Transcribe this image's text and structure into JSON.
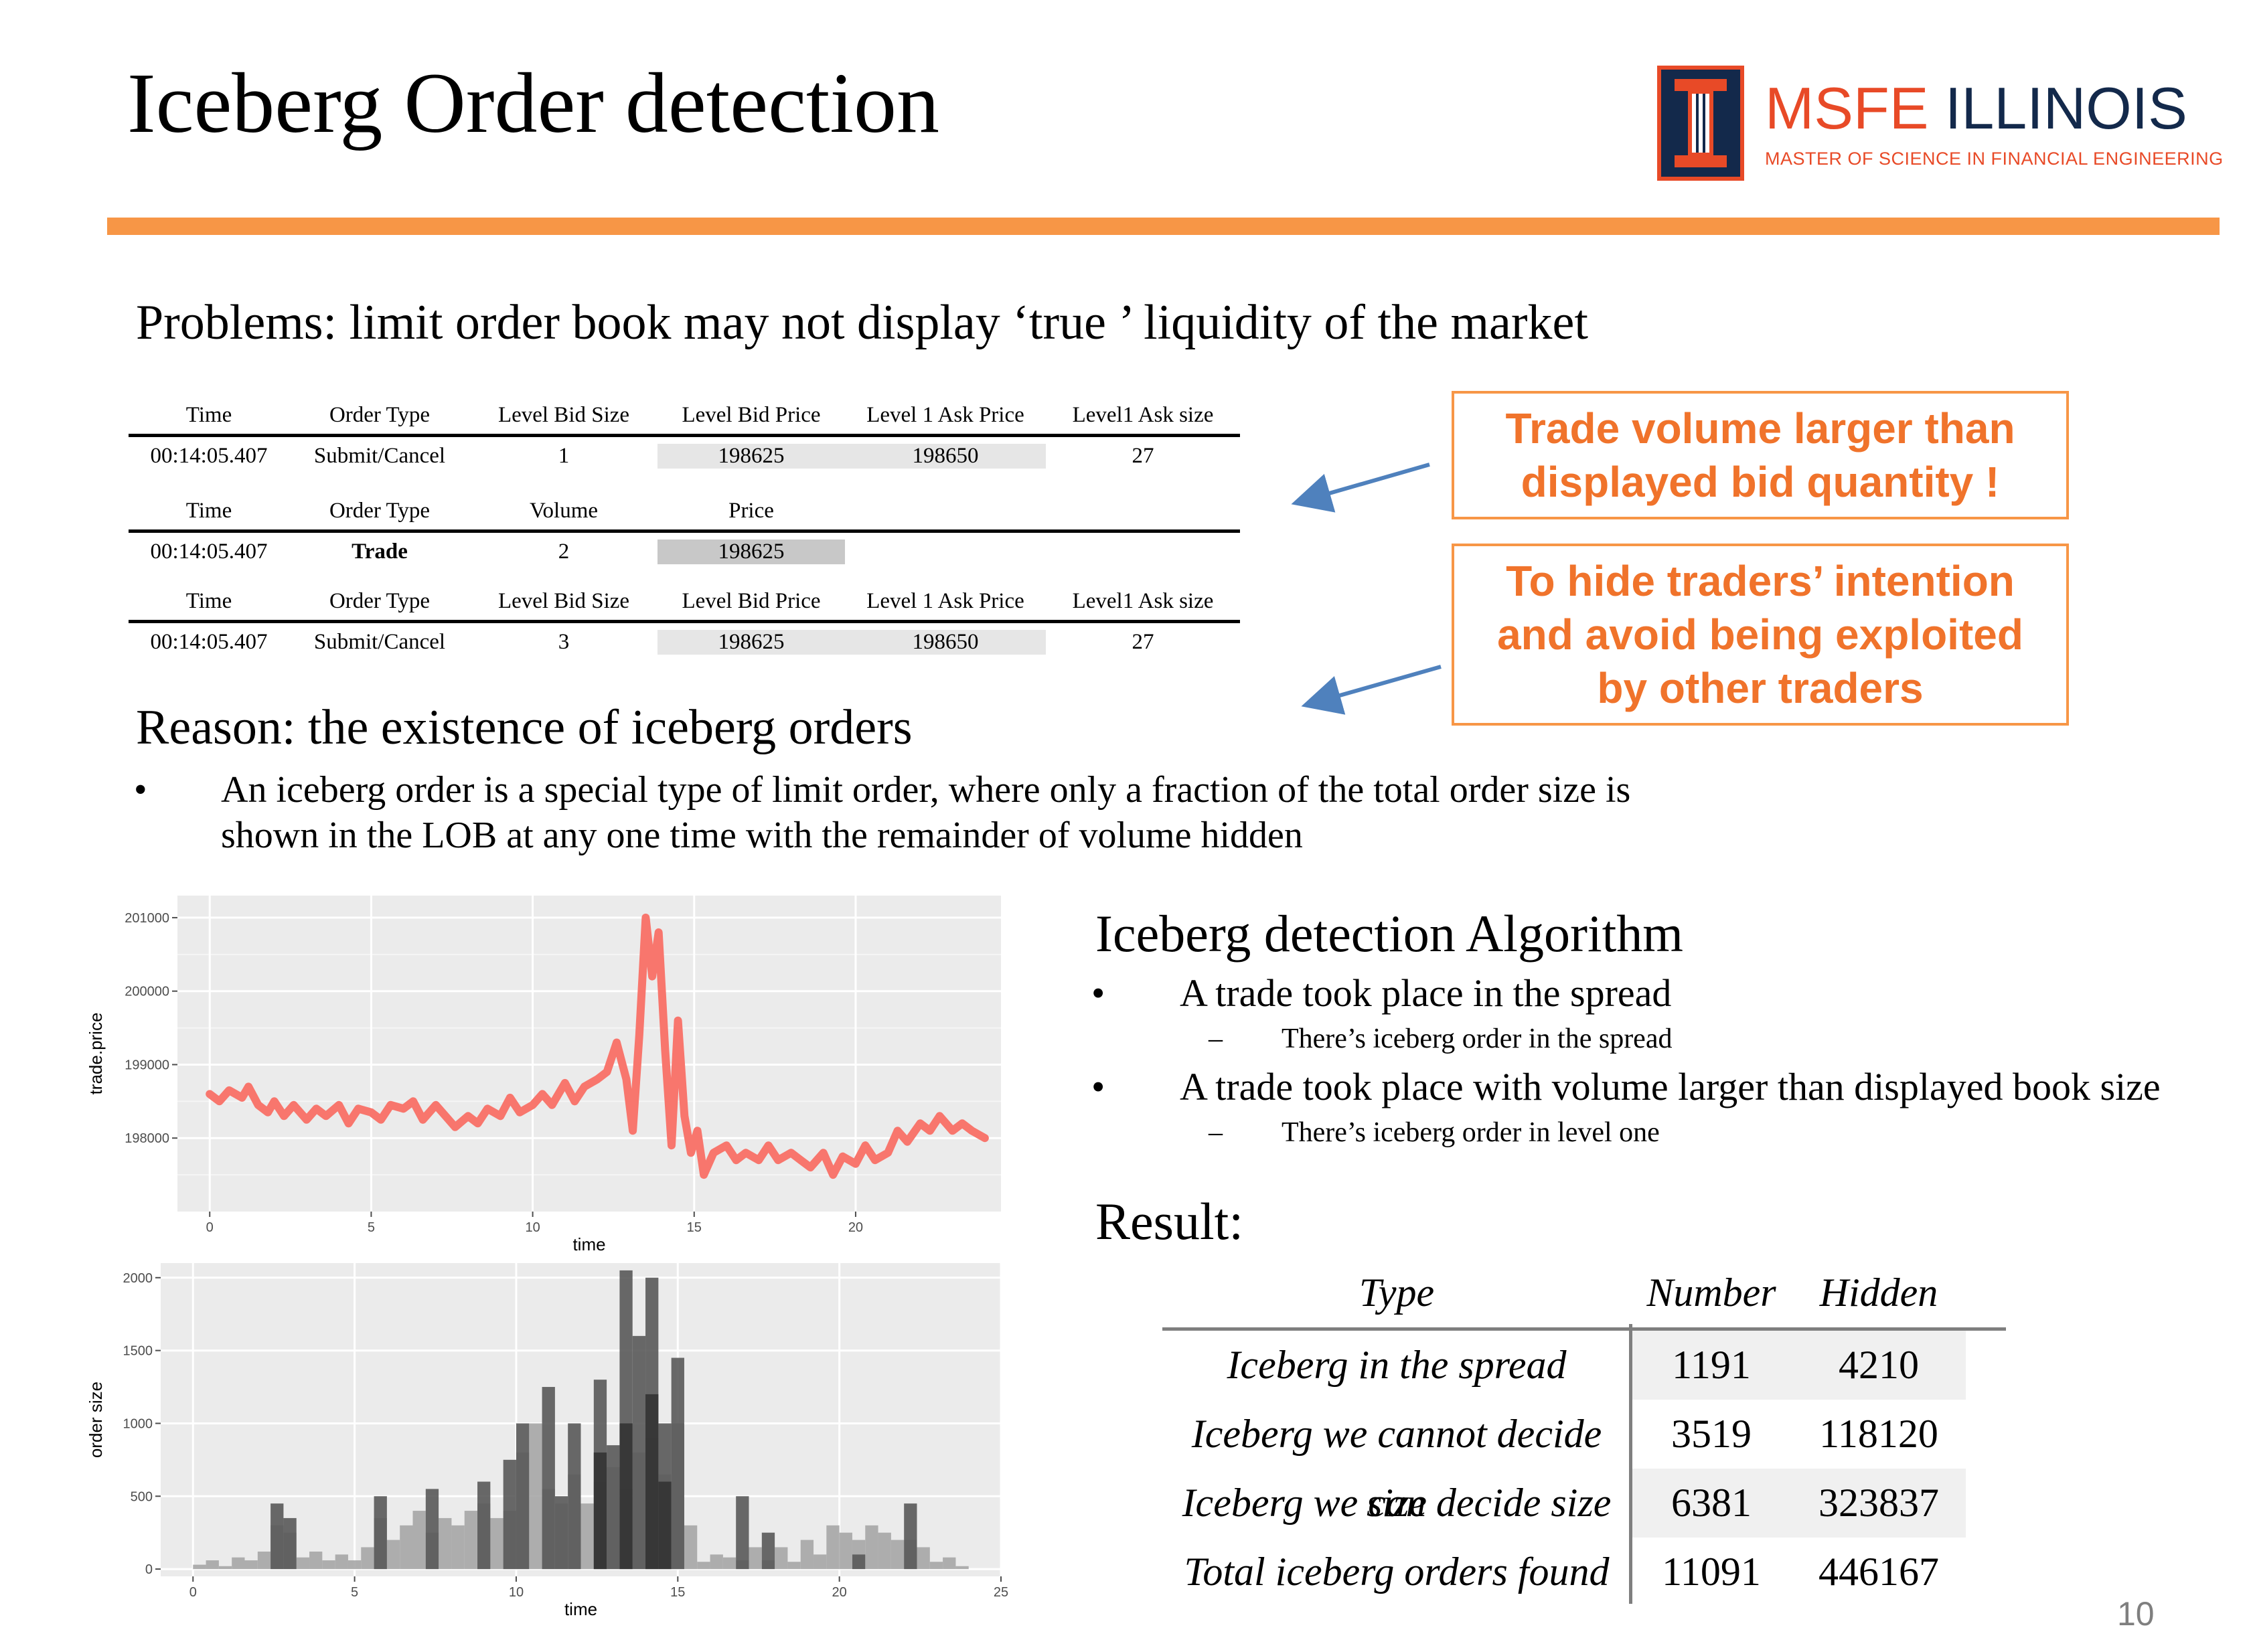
{
  "slide": {
    "title": "Iceberg Order detection",
    "page_number": "10",
    "accent_color": "#F79646",
    "logo": {
      "name_part1": "MSFE",
      "name_part2": "ILLINOIS",
      "subtitle": "MASTER OF SCIENCE IN FINANCIAL ENGINEERING"
    }
  },
  "problems": {
    "heading": "Problems: limit order book may not display ‘true ’ liquidity of the market",
    "table1": {
      "headers": [
        "Time",
        "Order Type",
        "Level Bid Size",
        "Level Bid Price",
        "Level 1 Ask Price",
        "Level1 Ask size"
      ],
      "row": [
        "00:14:05.407",
        "Submit/Cancel",
        "1",
        "198625",
        "198650",
        "27"
      ]
    },
    "table2": {
      "headers": [
        "Time",
        "Order Type",
        "Volume",
        "Price"
      ],
      "row": [
        "00:14:05.407",
        "Trade",
        "2",
        "198625"
      ]
    },
    "table3": {
      "headers": [
        "Time",
        "Order Type",
        "Level Bid Size",
        "Level Bid Price",
        "Level 1 Ask Price",
        "Level1 Ask size"
      ],
      "row": [
        "00:14:05.407",
        "Submit/Cancel",
        "3",
        "198625",
        "198650",
        "27"
      ]
    },
    "callout1": [
      "Trade volume larger than",
      "displayed bid quantity !"
    ],
    "callout2": [
      "To hide traders’ intention",
      "and avoid being exploited",
      "by other traders"
    ]
  },
  "reason": {
    "heading": "Reason: the existence of iceberg orders",
    "bullet_mark": "•",
    "bullet_line1": "An iceberg order is a special type of limit order, where only a fraction of the total order size is",
    "bullet_line2": "shown in the LOB at any one time with the remainder of volume hidden"
  },
  "algorithm": {
    "heading": "Iceberg detection Algorithm",
    "bullet_mark": "•",
    "sub_mark": "–",
    "items": [
      {
        "text": "A trade took place in the spread",
        "sub": "There’s iceberg order in the spread"
      },
      {
        "text": "A trade took place with volume larger than displayed book size",
        "sub": "There’s iceberg order in level one"
      }
    ]
  },
  "result": {
    "heading": "Result:",
    "headers": [
      "Type",
      "Number",
      "Hidden Size"
    ],
    "rows": [
      [
        "Iceberg in the spread",
        "1191",
        "4210"
      ],
      [
        "Iceberg we cannot decide size",
        "3519",
        "118120"
      ],
      [
        "Iceberg we can decide size",
        "6381",
        "323837"
      ],
      [
        "Total iceberg orders found",
        "11091",
        "446167"
      ]
    ]
  },
  "chart_data": [
    {
      "type": "line",
      "xlabel": "time",
      "ylabel": "trade.price",
      "xlim": [
        -1,
        24.5
      ],
      "ylim": [
        197000,
        201300
      ],
      "x_ticks": [
        0,
        5,
        10,
        15,
        20
      ],
      "y_ticks": [
        198000,
        199000,
        200000,
        201000
      ],
      "y_tick_labels": [
        "198000",
        "199000",
        "200000",
        "201000"
      ],
      "color": "#F8766D",
      "x": [
        0,
        0.3,
        0.6,
        1,
        1.2,
        1.5,
        1.8,
        2,
        2.3,
        2.6,
        3,
        3.3,
        3.6,
        4,
        4.3,
        4.6,
        5,
        5.3,
        5.6,
        6,
        6.3,
        6.6,
        7,
        7.3,
        7.6,
        8,
        8.3,
        8.6,
        9,
        9.3,
        9.6,
        10,
        10.3,
        10.6,
        11,
        11.3,
        11.6,
        12,
        12.3,
        12.6,
        12.9,
        13.1,
        13.3,
        13.5,
        13.7,
        13.9,
        14.1,
        14.3,
        14.5,
        14.7,
        14.9,
        15.1,
        15.3,
        15.6,
        16,
        16.3,
        16.6,
        17,
        17.3,
        17.6,
        18,
        18.3,
        18.6,
        19,
        19.3,
        19.6,
        20,
        20.3,
        20.6,
        21,
        21.3,
        21.6,
        22,
        22.3,
        22.6,
        23,
        23.3,
        23.6,
        24
      ],
      "y": [
        198600,
        198500,
        198650,
        198550,
        198700,
        198450,
        198350,
        198500,
        198300,
        198450,
        198250,
        198400,
        198300,
        198450,
        198200,
        198400,
        198350,
        198250,
        198450,
        198400,
        198500,
        198250,
        198450,
        198300,
        198150,
        198300,
        198200,
        198400,
        198300,
        198550,
        198350,
        198450,
        198600,
        198450,
        198750,
        198500,
        198700,
        198800,
        198900,
        199300,
        198800,
        198100,
        199400,
        201000,
        200200,
        200800,
        199200,
        197900,
        199600,
        198300,
        197800,
        198100,
        197500,
        197800,
        197900,
        197700,
        197800,
        197700,
        197900,
        197700,
        197800,
        197700,
        197600,
        197800,
        197500,
        197750,
        197650,
        197900,
        197700,
        197800,
        198100,
        197950,
        198200,
        198100,
        198300,
        198100,
        198200,
        198100,
        198000
      ]
    },
    {
      "type": "bar",
      "xlabel": "time",
      "ylabel": "order size",
      "xlim": [
        -1,
        25
      ],
      "ylim": [
        -50,
        2100
      ],
      "x_ticks": [
        0,
        5,
        10,
        15,
        20,
        25
      ],
      "y_ticks": [
        0,
        500,
        1000,
        1500,
        2000
      ],
      "bin_width": 0.4,
      "series": [
        {
          "color": "#A6A6A6",
          "x": [
            0,
            0.4,
            0.8,
            1.2,
            1.6,
            2,
            2.4,
            2.8,
            3.2,
            3.6,
            4,
            4.4,
            4.8,
            5.2,
            5.6,
            6,
            6.4,
            6.8,
            7.2,
            7.6,
            8,
            8.4,
            8.8,
            9.2,
            9.6,
            10,
            10.4,
            10.8,
            11.2,
            11.6,
            12,
            12.4,
            12.8,
            13.2,
            13.6,
            14,
            14.4,
            14.8,
            15.2,
            15.6,
            16,
            16.4,
            16.8,
            17.2,
            17.6,
            18,
            18.4,
            18.8,
            19.2,
            19.6,
            20,
            20.4,
            20.8,
            21.2,
            21.6,
            22,
            22.4,
            22.8,
            23.2,
            23.6
          ],
          "values": [
            30,
            60,
            20,
            80,
            60,
            120,
            300,
            250,
            80,
            120,
            60,
            100,
            60,
            150,
            350,
            200,
            300,
            400,
            250,
            350,
            300,
            400,
            450,
            350,
            400,
            800,
            1000,
            550,
            450,
            650,
            450,
            600,
            700,
            550,
            800,
            900,
            650,
            1000,
            300,
            50,
            100,
            80,
            60,
            150,
            60,
            150,
            50,
            200,
            100,
            300,
            250,
            200,
            300,
            250,
            200,
            200,
            150,
            50,
            80,
            20
          ]
        },
        {
          "color": "#595959",
          "x": [
            2.4,
            2.8,
            5.6,
            7.2,
            8.8,
            9.6,
            10,
            10.8,
            11.2,
            11.6,
            12.4,
            12.8,
            13.2,
            13.6,
            14,
            14.4,
            14.8,
            16.8,
            17.6,
            20.4,
            22
          ],
          "values": [
            450,
            350,
            500,
            550,
            600,
            750,
            1000,
            1250,
            500,
            1000,
            1300,
            850,
            2050,
            1600,
            2000,
            1000,
            1450,
            500,
            250,
            100,
            450
          ]
        },
        {
          "color": "#333333",
          "x": [
            12.4,
            13.2,
            14,
            14.4
          ],
          "values": [
            800,
            1000,
            1200,
            600
          ]
        }
      ]
    }
  ]
}
